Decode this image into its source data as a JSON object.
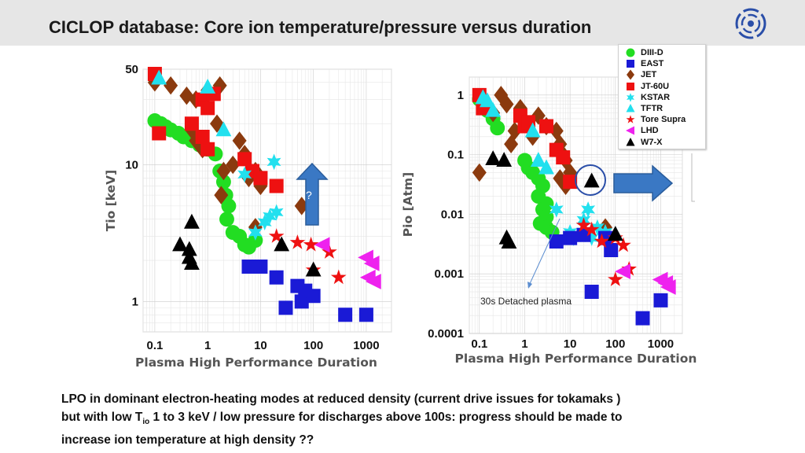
{
  "page": {
    "title": "CICLOP database: Core ion temperature/pressure versus duration",
    "question_mark": "?",
    "annotation": "30s Detached plasma",
    "bottom_text": {
      "line1": "LPO in dominant electron-heating modes at reduced density (current drive issues for tokamaks )",
      "line2_a": "but with low T",
      "line2_sub": "io",
      "line2_b": " 1 to 3 keV / low pressure for discharges above 100s: progress should be made to",
      "line3": "increase ion temperature at high density  ??"
    }
  },
  "legend": [
    {
      "name": "DIII-D",
      "marker": "circle",
      "color": "#22dd22"
    },
    {
      "name": "EAST",
      "marker": "square",
      "color": "#1a1ad6"
    },
    {
      "name": "JET",
      "marker": "diamond",
      "color": "#8b3a0e"
    },
    {
      "name": "JT-60U",
      "marker": "square",
      "color": "#ee1111"
    },
    {
      "name": "KSTAR",
      "marker": "star6",
      "color": "#22e0ee"
    },
    {
      "name": "TFTR",
      "marker": "triangle",
      "color": "#22e0ee"
    },
    {
      "name": "Tore Supra",
      "marker": "star5",
      "color": "#ee1111"
    },
    {
      "name": "LHD",
      "marker": "triangle-left",
      "color": "#ee22ee"
    },
    {
      "name": "W7-X",
      "marker": "triangle",
      "color": "#000000"
    }
  ],
  "chart_data": [
    {
      "type": "scatter",
      "title": "",
      "xlabel": "Plasma High Performance Duration",
      "ylabel": "Tio [keV]",
      "xscale": "log",
      "yscale": "log",
      "xlim": [
        0.06,
        3000
      ],
      "ylim": [
        0.6,
        50
      ],
      "xticks": [
        0.1,
        1,
        10,
        100,
        1000
      ],
      "xtick_labels": [
        "0.1",
        "1",
        "10",
        "100",
        "1000"
      ],
      "yticks": [
        1,
        10,
        50
      ],
      "ytick_labels": [
        "1",
        "10",
        "50"
      ],
      "grid": true,
      "series": [
        {
          "name": "DIII-D",
          "points": [
            [
              0.1,
              21
            ],
            [
              0.13,
              20
            ],
            [
              0.16,
              19
            ],
            [
              0.2,
              18
            ],
            [
              0.28,
              17
            ],
            [
              0.35,
              16
            ],
            [
              0.5,
              15
            ],
            [
              0.7,
              14
            ],
            [
              1,
              13
            ],
            [
              1.4,
              12
            ],
            [
              1.7,
              9
            ],
            [
              2,
              7.5
            ],
            [
              2.2,
              6
            ],
            [
              2.5,
              5
            ],
            [
              2.3,
              4
            ],
            [
              3,
              3.2
            ],
            [
              4,
              3
            ],
            [
              5,
              2.6
            ],
            [
              8,
              2.8
            ],
            [
              6,
              2.5
            ]
          ]
        },
        {
          "name": "EAST",
          "points": [
            [
              6,
              1.8
            ],
            [
              10,
              1.8
            ],
            [
              20,
              1.5
            ],
            [
              30,
              0.9
            ],
            [
              50,
              1.3
            ],
            [
              60,
              1
            ],
            [
              70,
              1.2
            ],
            [
              100,
              1.1
            ],
            [
              400,
              0.8
            ],
            [
              1000,
              0.8
            ]
          ]
        },
        {
          "name": "JET",
          "points": [
            [
              0.1,
              40
            ],
            [
              0.2,
              38
            ],
            [
              0.4,
              32
            ],
            [
              0.6,
              30
            ],
            [
              1,
              35
            ],
            [
              1.7,
              38
            ],
            [
              0.5,
              18
            ],
            [
              0.6,
              15
            ],
            [
              0.8,
              13
            ],
            [
              1.5,
              20
            ],
            [
              2,
              9
            ],
            [
              1.8,
              6
            ],
            [
              3,
              10
            ],
            [
              4,
              15
            ],
            [
              5,
              12
            ],
            [
              6,
              8
            ],
            [
              8,
              9
            ],
            [
              10,
              7
            ],
            [
              8,
              3.5
            ],
            [
              60,
              5
            ]
          ]
        },
        {
          "name": "JT-60U",
          "points": [
            [
              0.1,
              48
            ],
            [
              0.8,
              30
            ],
            [
              1,
              26
            ],
            [
              1.3,
              33
            ],
            [
              0.12,
              17
            ],
            [
              0.5,
              20
            ],
            [
              0.8,
              16
            ],
            [
              1,
              13
            ],
            [
              5,
              11
            ],
            [
              7,
              9
            ],
            [
              10,
              8
            ],
            [
              20,
              7
            ]
          ]
        },
        {
          "name": "KSTAR",
          "points": [
            [
              5,
              8.5
            ],
            [
              18,
              10.5
            ],
            [
              8,
              3.2
            ],
            [
              12,
              3.8
            ],
            [
              15,
              4.2
            ],
            [
              20,
              4.5
            ]
          ]
        },
        {
          "name": "TFTR",
          "points": [
            [
              0.12,
              43
            ],
            [
              1,
              37
            ],
            [
              2,
              18
            ]
          ]
        },
        {
          "name": "Tore Supra",
          "points": [
            [
              20,
              3
            ],
            [
              50,
              2.7
            ],
            [
              90,
              2.6
            ],
            [
              100,
              1.7
            ],
            [
              200,
              2.3
            ],
            [
              300,
              1.5
            ]
          ]
        },
        {
          "name": "LHD",
          "points": [
            [
              150,
              2.6
            ],
            [
              1000,
              2.1
            ],
            [
              1300,
              1.9
            ],
            [
              1100,
              1.5
            ],
            [
              1400,
              1.4
            ]
          ]
        },
        {
          "name": "W7-X",
          "points": [
            [
              0.3,
              2.6
            ],
            [
              0.5,
              3.8
            ],
            [
              0.45,
              2.4
            ],
            [
              0.45,
              2.1
            ],
            [
              0.5,
              1.9
            ],
            [
              25,
              2.6
            ],
            [
              100,
              1.7
            ]
          ]
        }
      ]
    },
    {
      "type": "scatter",
      "title": "",
      "xlabel": "Plasma High Performance Duration",
      "ylabel": "Pio [Atm]",
      "xscale": "log",
      "yscale": "log",
      "xlim": [
        0.06,
        3000
      ],
      "ylim": [
        0.0001,
        2
      ],
      "xticks": [
        0.1,
        1,
        10,
        100,
        1000
      ],
      "xtick_labels": [
        "0.1",
        "1",
        "10",
        "100",
        "1000"
      ],
      "yticks": [
        0.0001,
        0.001,
        0.01,
        0.1,
        1
      ],
      "ytick_labels": [
        "0.0001",
        "0.001",
        "0.01",
        "0.1",
        "1"
      ],
      "grid": true,
      "series": [
        {
          "name": "DIII-D",
          "points": [
            [
              0.1,
              0.85
            ],
            [
              0.15,
              0.55
            ],
            [
              0.2,
              0.4
            ],
            [
              0.25,
              0.28
            ],
            [
              1,
              0.08
            ],
            [
              1.2,
              0.06
            ],
            [
              1.5,
              0.05
            ],
            [
              2,
              0.04
            ],
            [
              2.5,
              0.03
            ],
            [
              2,
              0.02
            ],
            [
              3,
              0.015
            ],
            [
              2.5,
              0.012
            ],
            [
              3,
              0.009
            ],
            [
              2.2,
              0.007
            ],
            [
              3,
              0.006
            ],
            [
              4,
              0.005
            ]
          ]
        },
        {
          "name": "EAST",
          "points": [
            [
              5,
              0.0035
            ],
            [
              10,
              0.004
            ],
            [
              20,
              0.0045
            ],
            [
              60,
              0.004
            ],
            [
              80,
              0.0025
            ],
            [
              30,
              0.0005
            ],
            [
              400,
              0.00018
            ],
            [
              1000,
              0.00036
            ]
          ]
        },
        {
          "name": "JET",
          "points": [
            [
              0.1,
              0.05
            ],
            [
              0.2,
              0.5
            ],
            [
              0.3,
              1
            ],
            [
              0.4,
              0.7
            ],
            [
              0.5,
              0.15
            ],
            [
              0.6,
              0.25
            ],
            [
              0.8,
              0.6
            ],
            [
              1,
              0.35
            ],
            [
              1.5,
              0.2
            ],
            [
              2,
              0.45
            ],
            [
              3,
              0.3
            ],
            [
              5,
              0.25
            ],
            [
              6,
              0.15
            ],
            [
              7,
              0.1
            ],
            [
              8,
              0.08
            ],
            [
              10,
              0.05
            ],
            [
              6,
              0.04
            ],
            [
              8,
              0.03
            ],
            [
              60,
              0.006
            ]
          ]
        },
        {
          "name": "JT-60U",
          "points": [
            [
              0.1,
              1
            ],
            [
              0.12,
              0.6
            ],
            [
              0.8,
              0.45
            ],
            [
              1,
              0.3
            ],
            [
              1.2,
              0.35
            ],
            [
              3,
              0.3
            ],
            [
              5,
              0.12
            ],
            [
              7,
              0.09
            ],
            [
              10,
              0.035
            ]
          ]
        },
        {
          "name": "KSTAR",
          "points": [
            [
              5,
              0.012
            ],
            [
              10,
              0.005
            ],
            [
              12,
              0.004
            ],
            [
              20,
              0.008
            ],
            [
              25,
              0.012
            ],
            [
              30,
              0.004
            ],
            [
              40,
              0.006
            ],
            [
              60,
              0.005
            ]
          ]
        },
        {
          "name": "TFTR",
          "points": [
            [
              0.12,
              0.9
            ],
            [
              0.15,
              0.8
            ],
            [
              0.2,
              0.55
            ],
            [
              1.5,
              0.25
            ],
            [
              2,
              0.08
            ],
            [
              3,
              0.06
            ]
          ]
        },
        {
          "name": "Tore Supra",
          "points": [
            [
              20,
              0.0065
            ],
            [
              30,
              0.0055
            ],
            [
              50,
              0.0035
            ],
            [
              100,
              0.004
            ],
            [
              150,
              0.003
            ],
            [
              100,
              0.0008
            ],
            [
              200,
              0.0012
            ]
          ]
        },
        {
          "name": "LHD",
          "points": [
            [
              150,
              0.0011
            ],
            [
              1000,
              0.0008
            ],
            [
              1300,
              0.0007
            ],
            [
              1500,
              0.0006
            ]
          ]
        },
        {
          "name": "W7-X",
          "points": [
            [
              0.2,
              0.085
            ],
            [
              0.35,
              0.08
            ],
            [
              0.4,
              0.004
            ],
            [
              0.45,
              0.0034
            ],
            [
              30,
              0.036
            ],
            [
              100,
              0.0046
            ]
          ]
        }
      ]
    }
  ]
}
